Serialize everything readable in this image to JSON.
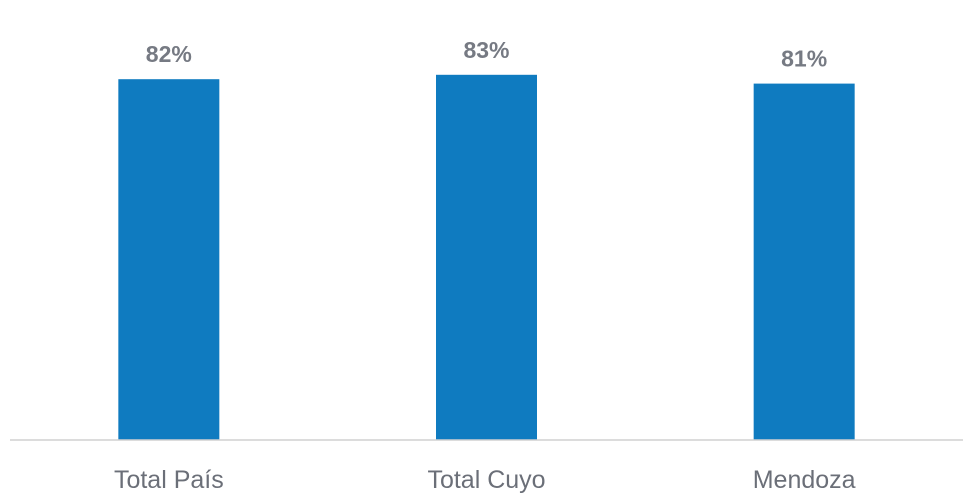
{
  "chart_data": {
    "type": "bar",
    "categories": [
      "Total País",
      "Total Cuyo",
      "Mendoza"
    ],
    "values": [
      82,
      83,
      81
    ],
    "data_labels": [
      "82%",
      "83%",
      "81%"
    ],
    "title": "",
    "xlabel": "",
    "ylabel": "",
    "ylim": [
      0,
      100
    ],
    "grid": false,
    "legend": "none",
    "bar_color": "#0f7bc0",
    "axis_color": "#d0d0d0"
  }
}
